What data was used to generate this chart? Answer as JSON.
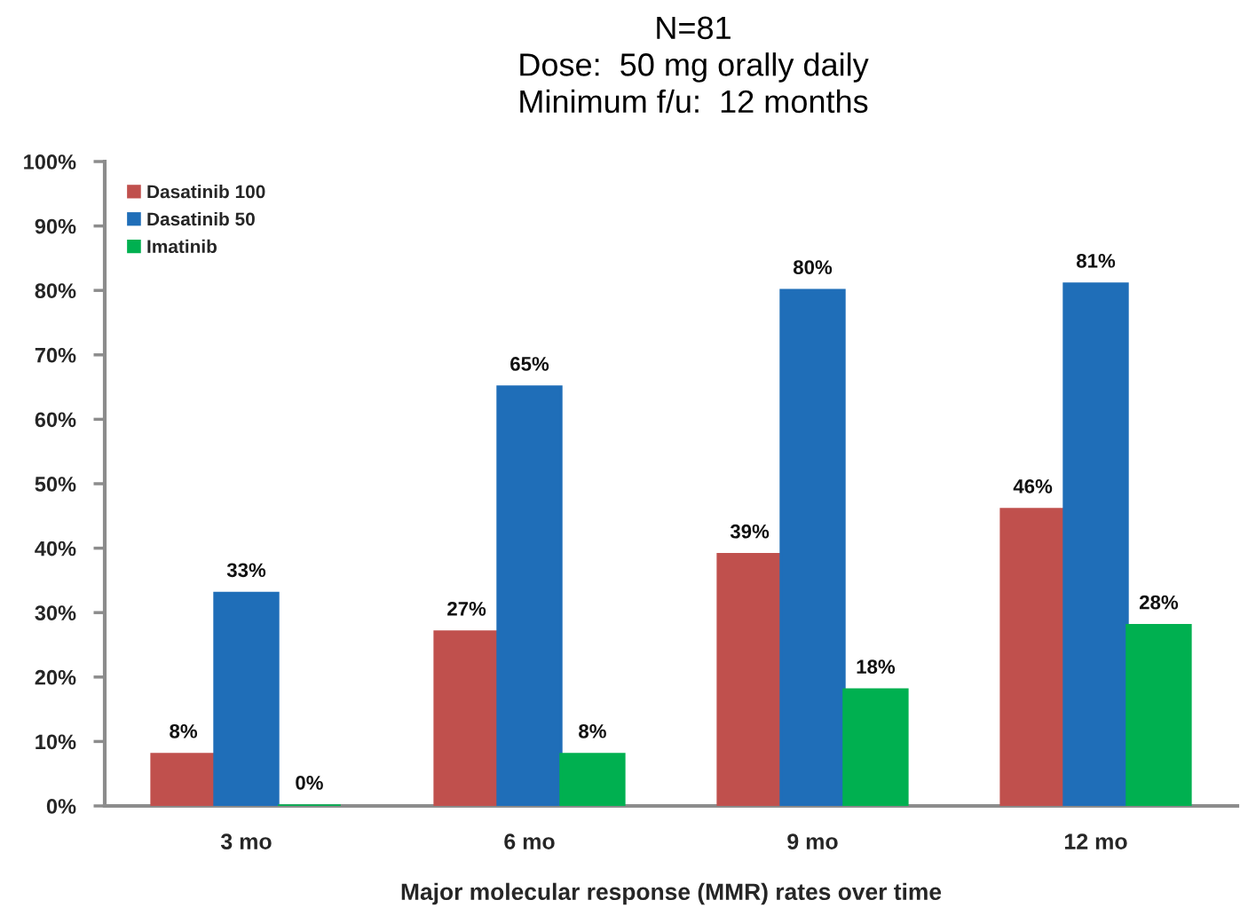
{
  "chart_data": {
    "type": "bar",
    "title": "N=81\nDose:  50 mg orally daily\nMinimum f/u:  12 months",
    "xlabel": "Major molecular response (MMR) rates over time",
    "categories": [
      "3 mo",
      "6 mo",
      "9 mo",
      "12 mo"
    ],
    "series": [
      {
        "name": "Dasatinib 100",
        "color": "#c0504d",
        "values": [
          8,
          27,
          39,
          46
        ],
        "value_labels": [
          "8%",
          "27%",
          "39%",
          "46%"
        ]
      },
      {
        "name": "Dasatinib 50",
        "color": "#1f6eb8",
        "values": [
          33,
          65,
          80,
          81
        ],
        "value_labels": [
          "33%",
          "65%",
          "80%",
          "81%"
        ]
      },
      {
        "name": "Imatinib",
        "color": "#00b050",
        "values": [
          0,
          8,
          18,
          28
        ],
        "value_labels": [
          "0%",
          "8%",
          "18%",
          "28%"
        ]
      }
    ],
    "ylim": [
      0,
      100
    ],
    "yticks": [
      {
        "value": 0,
        "label": "0%"
      },
      {
        "value": 10,
        "label": "10%"
      },
      {
        "value": 20,
        "label": "20%"
      },
      {
        "value": 30,
        "label": "30%"
      },
      {
        "value": 40,
        "label": "40%"
      },
      {
        "value": 50,
        "label": "50%"
      },
      {
        "value": 60,
        "label": "60%"
      },
      {
        "value": 70,
        "label": "70%"
      },
      {
        "value": 80,
        "label": "80%"
      },
      {
        "value": 90,
        "label": "90%"
      },
      {
        "value": 100,
        "label": "100%"
      }
    ],
    "legend": "top left",
    "grid": false
  }
}
